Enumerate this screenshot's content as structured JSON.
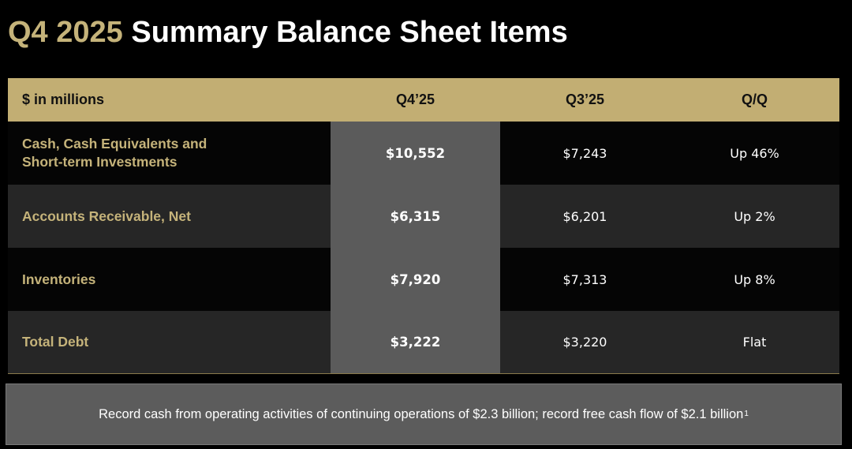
{
  "title": {
    "accent": "Q4 2025",
    "rest": "Summary Balance Sheet Items"
  },
  "table": {
    "headers": [
      "$ in millions",
      "Q4’25",
      "Q3’25",
      "Q/Q"
    ],
    "rows": [
      {
        "label_line1": "Cash, Cash Equivalents and",
        "label_line2": "Short-term Investments",
        "q4": "$10,552",
        "q3": "$7,243",
        "qq": "Up 46%"
      },
      {
        "label_line1": "Accounts Receivable, Net",
        "label_line2": "",
        "q4": "$6,315",
        "q3": "$6,201",
        "qq": "Up 2%"
      },
      {
        "label_line1": "Inventories",
        "label_line2": "",
        "q4": "$7,920",
        "q3": "$7,313",
        "qq": "Up 8%"
      },
      {
        "label_line1": "Total Debt",
        "label_line2": "",
        "q4": "$3,222",
        "q3": "$3,220",
        "qq": "Flat"
      }
    ]
  },
  "footer": {
    "text": "Record cash from operating activities of continuing operations of $2.3 billion; record free cash flow of $2.1 billion",
    "footnote": "1"
  },
  "colors": {
    "gold": "#c5b37a",
    "header_band": "#c2ae73",
    "highlight_column": "#5b5b5b",
    "background": "#000000"
  }
}
